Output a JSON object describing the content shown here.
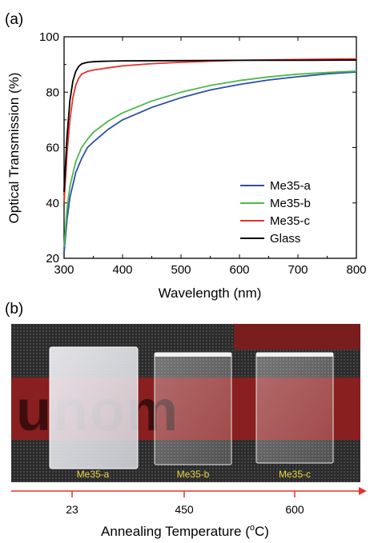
{
  "panel_a_label": "(a)",
  "panel_b_label": "(b)",
  "chart_data": {
    "type": "line",
    "title": "",
    "xlabel": "Wavelength (nm)",
    "ylabel": "Optical Transmission (%)",
    "xlim": [
      300,
      800
    ],
    "ylim": [
      20,
      100
    ],
    "x_ticks": [
      300,
      400,
      500,
      600,
      700,
      800
    ],
    "y_ticks": [
      20,
      40,
      60,
      80,
      100
    ],
    "grid": false,
    "legend_position": "bottom-right",
    "series": [
      {
        "name": "Me35-a",
        "color": "#2e4fa8",
        "x": [
          300,
          305,
          310,
          320,
          330,
          340,
          350,
          375,
          400,
          450,
          500,
          550,
          600,
          650,
          700,
          750,
          800
        ],
        "y": [
          22,
          34,
          42,
          51,
          56,
          60,
          62,
          66.5,
          70,
          74.5,
          78,
          80.8,
          82.8,
          84.4,
          85.6,
          86.6,
          87.3
        ]
      },
      {
        "name": "Me35-b",
        "color": "#4cb84c",
        "x": [
          300,
          305,
          310,
          320,
          330,
          340,
          350,
          375,
          400,
          450,
          500,
          550,
          600,
          650,
          700,
          750,
          800
        ],
        "y": [
          24,
          38,
          46,
          55,
          60,
          63,
          65.5,
          69.5,
          72.5,
          76.8,
          80,
          82.4,
          84.2,
          85.5,
          86.5,
          87.1,
          87.6
        ]
      },
      {
        "name": "Me35-c",
        "color": "#e8302a",
        "x": [
          300,
          305,
          310,
          315,
          320,
          325,
          330,
          340,
          350,
          360,
          375,
          400,
          450,
          500,
          550,
          600,
          700,
          800
        ],
        "y": [
          40,
          58,
          70,
          78,
          82.5,
          85,
          86.5,
          87.5,
          88,
          88.3,
          88.8,
          89.5,
          90.3,
          90.8,
          91.2,
          91.5,
          91.8,
          92
        ]
      },
      {
        "name": "Glass",
        "color": "#000000",
        "x": [
          300,
          305,
          310,
          315,
          320,
          325,
          330,
          340,
          350,
          360,
          375,
          400,
          500,
          600,
          700,
          800
        ],
        "y": [
          44,
          64,
          77,
          84,
          87.5,
          89.3,
          90.2,
          90.8,
          91,
          91.1,
          91.2,
          91.3,
          91.4,
          91.5,
          91.5,
          91.6
        ]
      }
    ]
  },
  "photo": {
    "background_text": "unom",
    "samples": [
      {
        "label": "Me35-a"
      },
      {
        "label": "Me35-b"
      },
      {
        "label": "Me35-c"
      }
    ]
  },
  "temperature_axis": {
    "ticks": [
      "23",
      "450",
      "600"
    ],
    "title": "Annealing Temperature (",
    "title_sup": "o",
    "title_end": "C)",
    "color": "#e8302a"
  }
}
